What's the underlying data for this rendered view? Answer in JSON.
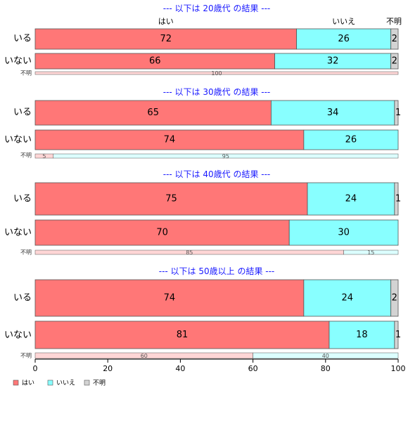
{
  "chart_data": {
    "type": "bar",
    "orientation": "horizontal",
    "stacked": "percent",
    "xlim": [
      0,
      100
    ],
    "x_ticks": [
      0,
      20,
      40,
      60,
      80,
      100
    ],
    "category_headers": [
      "はい",
      "いいえ",
      "不明"
    ],
    "legend": {
      "placement": "bottom-left",
      "entries": [
        {
          "label": "はい",
          "color": "#ff7777"
        },
        {
          "label": "いいえ",
          "color": "#88ffff"
        },
        {
          "label": "不明",
          "color": "#d3d3d3"
        }
      ]
    },
    "colors": {
      "yes": "#ff7777",
      "no": "#88ffff",
      "unknown": "#d3d3d3",
      "yes_light": "#ffd6d6",
      "no_light": "#dcffff",
      "title": "#1a1aff"
    },
    "panels": [
      {
        "title": "--- 以下は 20歳代 の結果 ---",
        "rows": [
          {
            "label": "いる",
            "values": [
              72,
              26,
              2
            ]
          },
          {
            "label": "いない",
            "values": [
              66,
              32,
              2
            ]
          },
          {
            "label": "不明",
            "values": [
              100,
              0,
              0
            ]
          }
        ]
      },
      {
        "title": "--- 以下は 30歳代 の結果 ---",
        "rows": [
          {
            "label": "いる",
            "values": [
              65,
              34,
              1
            ]
          },
          {
            "label": "いない",
            "values": [
              74,
              26,
              0
            ]
          },
          {
            "label": "不明",
            "values": [
              5,
              95,
              0
            ]
          }
        ]
      },
      {
        "title": "--- 以下は 40歳代 の結果 ---",
        "rows": [
          {
            "label": "いる",
            "values": [
              75,
              24,
              1
            ]
          },
          {
            "label": "いない",
            "values": [
              70,
              30,
              0
            ]
          },
          {
            "label": "不明",
            "values": [
              85,
              15,
              0
            ]
          }
        ]
      },
      {
        "title": "--- 以下は 50歳以上 の結果 ---",
        "rows": [
          {
            "label": "いる",
            "values": [
              74,
              24,
              2
            ]
          },
          {
            "label": "いない",
            "values": [
              81,
              18,
              1
            ]
          },
          {
            "label": "不明",
            "values": [
              60,
              40,
              0
            ]
          }
        ]
      }
    ]
  }
}
